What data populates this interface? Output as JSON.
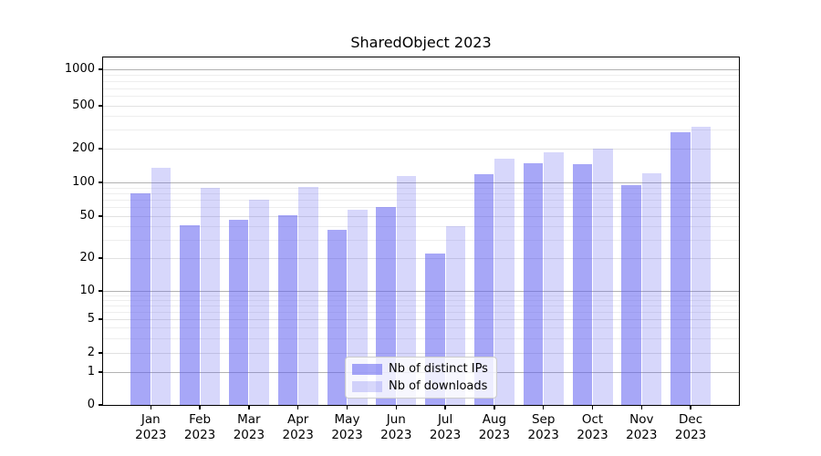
{
  "chart_data": {
    "type": "bar",
    "title": "SharedObject 2023",
    "yscale": "symlog",
    "grid": true,
    "legend_position": "lower center",
    "categories": [
      "Jan 2023",
      "Feb 2023",
      "Mar 2023",
      "Apr 2023",
      "May 2023",
      "Jun 2023",
      "Jul 2023",
      "Aug 2023",
      "Sep 2023",
      "Oct 2023",
      "Nov 2023",
      "Dec 2023"
    ],
    "series": [
      {
        "name": "Nb of distinct IPs",
        "key": "distinct-ips",
        "color": "#5f5ff0",
        "alpha": 0.55,
        "legend_hex": "#a9a9f7",
        "values": [
          80,
          41,
          46,
          51,
          37,
          60,
          22,
          118,
          149,
          146,
          95,
          284
        ]
      },
      {
        "name": "Nb of downloads",
        "key": "downloads",
        "color": "#5f5ff0",
        "alpha": 0.25,
        "legend_hex": "#dcdcfa",
        "values": [
          135,
          90,
          70,
          91,
          57,
          114,
          40,
          163,
          184,
          199,
          121,
          319
        ]
      }
    ],
    "yticks": [
      0,
      1,
      2,
      5,
      10,
      20,
      50,
      100,
      200,
      500,
      1000
    ],
    "yticklabels": [
      "0",
      "1",
      "2",
      "5",
      "10",
      "20",
      "50",
      "100",
      "200",
      "500",
      "1000"
    ],
    "ylim": [
      0,
      1280
    ],
    "grid_colors": {
      "major": "#b2b2b2",
      "labeled_minor": "#e1e1e1",
      "minor": "#eeeeee"
    }
  }
}
